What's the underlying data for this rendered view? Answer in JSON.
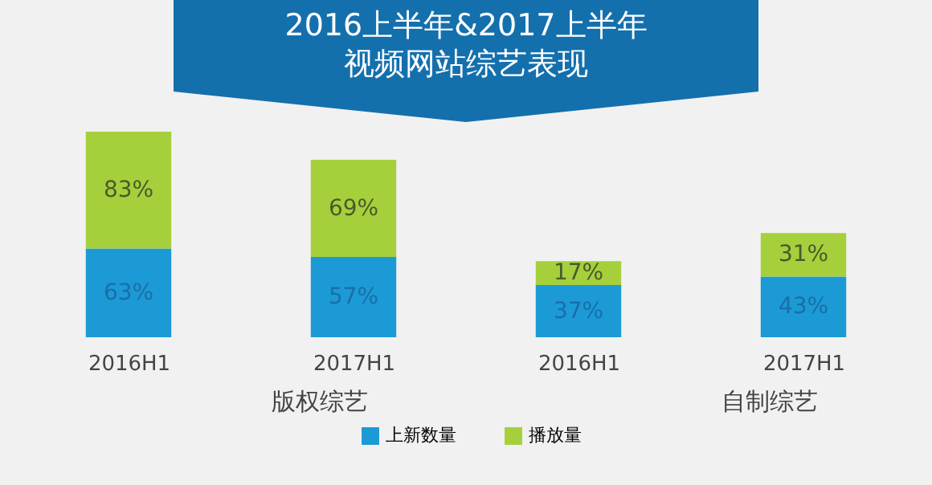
{
  "chart_data": {
    "type": "bar",
    "title": "2016上半年&2017上半年",
    "subtitle": "视频网站综艺表现",
    "categories": [
      "2016H1",
      "2017H1",
      "2016H1",
      "2017H1"
    ],
    "stacked": true,
    "legend": "bottom",
    "series": [
      {
        "name": "上新数量",
        "color": "#1b9ad6",
        "values": [
          63,
          57,
          37,
          43
        ],
        "value_labels": [
          "63%",
          "57%",
          "37%",
          "43%"
        ]
      },
      {
        "name": "播放量",
        "color": "#a6cf3c",
        "values": [
          83,
          69,
          17,
          31
        ],
        "value_labels": [
          "83%",
          "69%",
          "17%",
          "31%"
        ]
      }
    ],
    "annotations": [
      "版权综艺",
      "自制综艺"
    ]
  }
}
